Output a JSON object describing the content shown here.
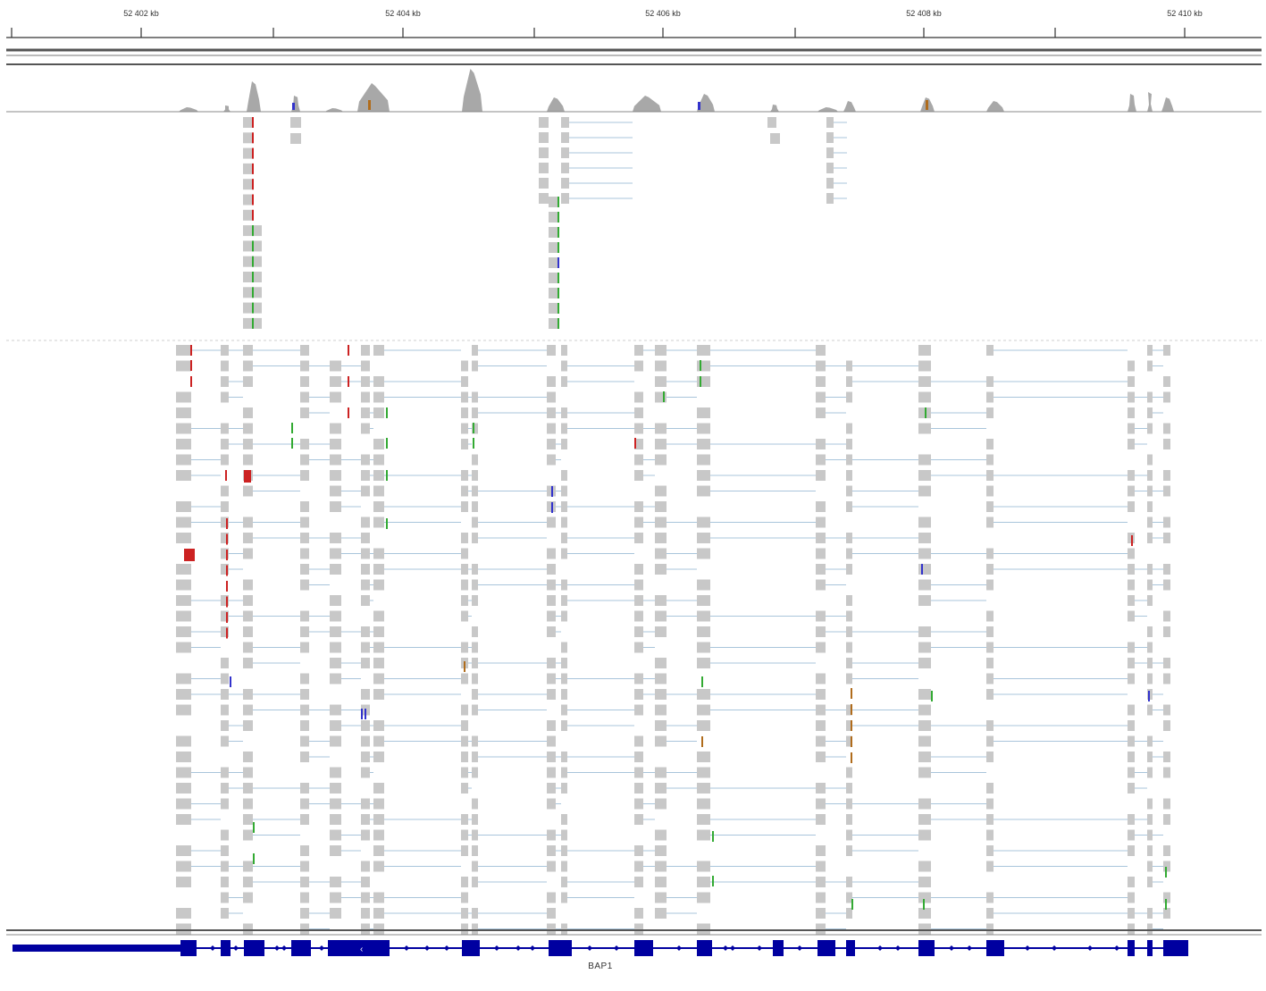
{
  "ruler": {
    "ticks": [
      "52 402 kb",
      "52 404 kb",
      "52 406 kb",
      "52 408 kb",
      "52 410 kb"
    ]
  },
  "gene": {
    "name": "BAP1",
    "color": "#0000a0",
    "strand_glyph": "‹"
  },
  "reads": {
    "base_color": "#c8c8c8",
    "junction_color": "#a9c5db",
    "mismatch_colors": {
      "A": "#33aa33",
      "C": "#3333cc",
      "G": "#b06c1c",
      "T": "#cc2222"
    }
  },
  "coverage": {
    "fill": "#a8a8a8"
  }
}
